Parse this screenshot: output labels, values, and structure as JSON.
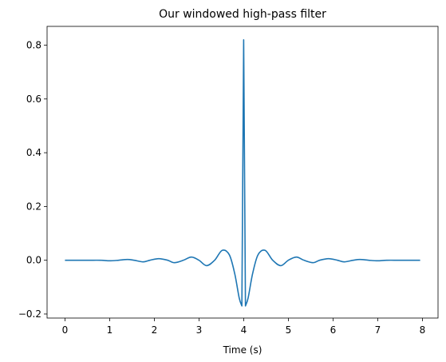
{
  "chart_data": {
    "type": "line",
    "title": "Our windowed high-pass filter",
    "xlabel": "Time (s)",
    "ylabel": "",
    "xlim": [
      -0.4,
      8.35
    ],
    "ylim": [
      -0.215,
      0.87
    ],
    "x_ticks": [
      0,
      1,
      2,
      3,
      4,
      5,
      6,
      7,
      8
    ],
    "y_ticks": [
      -0.2,
      0.0,
      0.2,
      0.4,
      0.6,
      0.8
    ],
    "x_tick_labels": [
      "0",
      "1",
      "2",
      "3",
      "4",
      "5",
      "6",
      "7",
      "8"
    ],
    "y_tick_labels": [
      "−0.2",
      "0.0",
      "0.2",
      "0.4",
      "0.6",
      "0.8"
    ],
    "grid": false,
    "series": [
      {
        "color": "#1f77b4",
        "x": [
          0.0,
          0.5,
          0.8,
          1.0,
          1.2,
          1.4,
          1.55,
          1.75,
          1.9,
          2.1,
          2.3,
          2.45,
          2.65,
          2.83,
          3.0,
          3.17,
          3.35,
          3.52,
          3.68,
          3.8,
          3.9,
          3.96,
          4.0,
          4.04,
          4.1,
          4.2,
          4.32,
          4.48,
          4.65,
          4.83,
          5.0,
          5.18,
          5.35,
          5.55,
          5.7,
          5.9,
          6.1,
          6.25,
          6.45,
          6.6,
          6.8,
          7.0,
          7.2,
          7.5,
          7.95
        ],
        "y": [
          0.0,
          0.0,
          0.0,
          -0.002,
          0.0,
          0.003,
          0.0,
          -0.006,
          0.0,
          0.006,
          0.0,
          -0.009,
          0.0,
          0.012,
          0.0,
          -0.02,
          0.0,
          0.037,
          0.02,
          -0.05,
          -0.14,
          -0.17,
          0.82,
          -0.17,
          -0.14,
          -0.05,
          0.02,
          0.037,
          0.0,
          -0.02,
          0.0,
          0.012,
          0.0,
          -0.009,
          0.0,
          0.006,
          0.0,
          -0.006,
          0.0,
          0.003,
          0.0,
          -0.002,
          0.0,
          0.0,
          0.0
        ]
      }
    ]
  }
}
